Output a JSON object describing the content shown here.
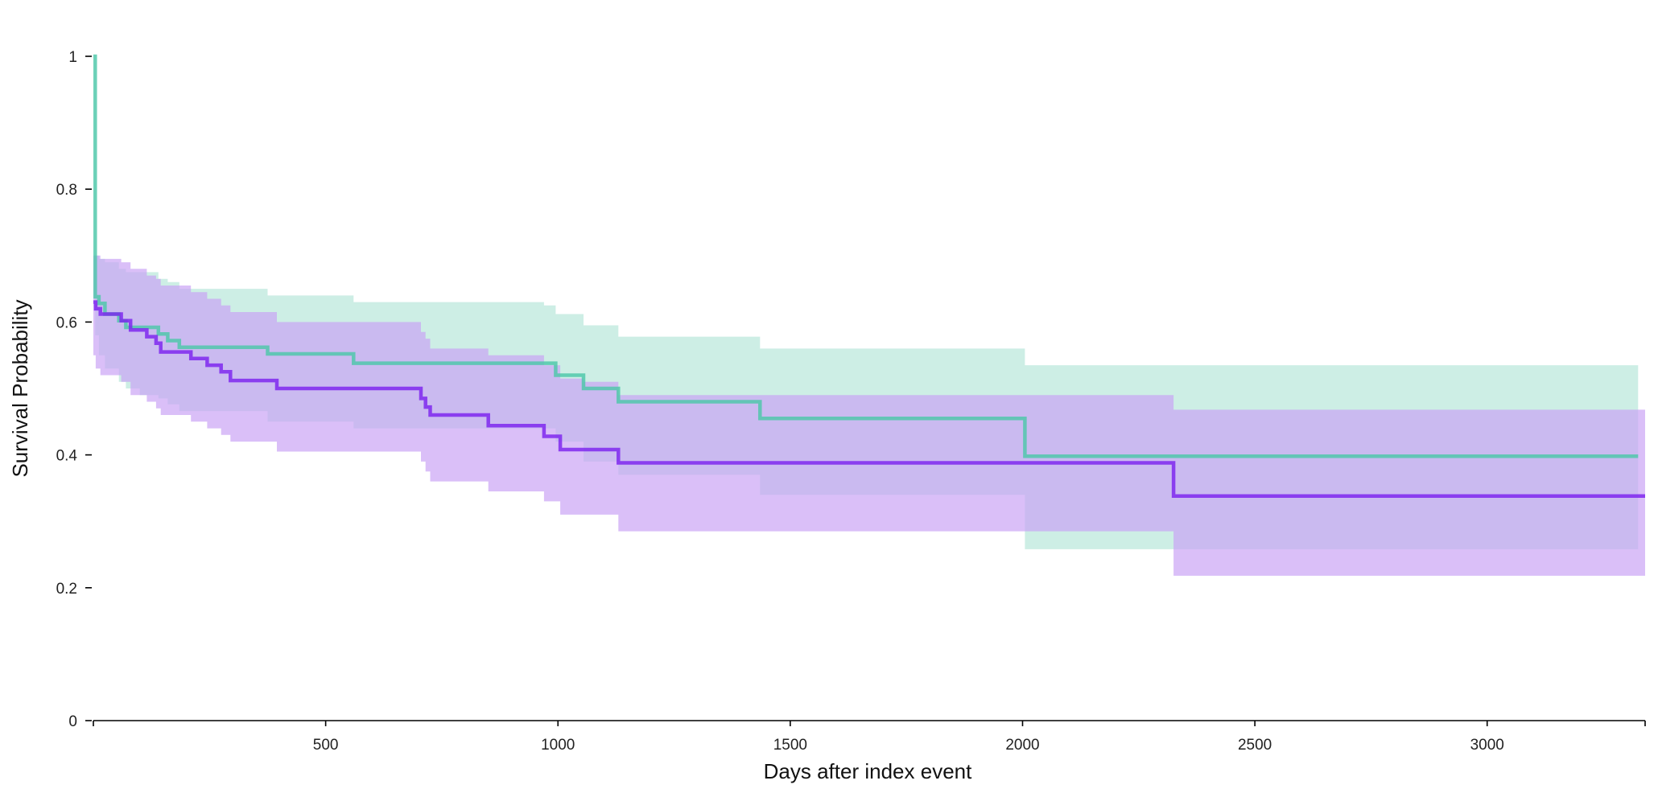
{
  "chart_data": {
    "type": "line",
    "subtype": "kaplan-meier step",
    "title": "",
    "xlabel": "Days after index event",
    "ylabel": "Survival Probability",
    "xlim": [
      0,
      3340
    ],
    "ylim": [
      0,
      1
    ],
    "xticks": [
      500,
      1000,
      1500,
      2000,
      2500,
      3000
    ],
    "yticks": [
      0,
      0.2,
      0.4,
      0.6,
      0.8,
      1
    ],
    "ytick_labels": [
      "0",
      "0.2",
      "0.4",
      "0.6",
      "0.8",
      "1"
    ],
    "grid": false,
    "legend": "none",
    "series": [
      {
        "color": "#4cc7a8",
        "band_color": "#b6e6d8",
        "x": [
          0,
          4,
          12,
          25,
          55,
          70,
          100,
          140,
          160,
          185,
          375,
          560,
          970,
          995,
          1055,
          1130,
          1435,
          2005,
          3325
        ],
        "y": [
          1.0,
          0.638,
          0.628,
          0.612,
          0.602,
          0.592,
          0.592,
          0.582,
          0.572,
          0.562,
          0.552,
          0.538,
          0.538,
          0.52,
          0.5,
          0.48,
          0.455,
          0.398,
          0.398
        ],
        "lower": [
          1.0,
          0.58,
          0.55,
          0.53,
          0.51,
          0.5,
          0.49,
          0.485,
          0.476,
          0.466,
          0.45,
          0.44,
          0.44,
          0.42,
          0.39,
          0.37,
          0.34,
          0.258,
          0.258
        ],
        "upper": [
          1.0,
          0.7,
          0.695,
          0.69,
          0.68,
          0.675,
          0.675,
          0.665,
          0.66,
          0.65,
          0.64,
          0.63,
          0.625,
          0.612,
          0.595,
          0.578,
          0.56,
          0.535,
          0.535
        ]
      },
      {
        "color": "#7b22ee",
        "band_color": "#c9a0f5",
        "x": [
          0,
          5,
          15,
          60,
          80,
          115,
          135,
          145,
          210,
          245,
          275,
          295,
          395,
          705,
          715,
          725,
          850,
          970,
          1005,
          1055,
          1130,
          2325,
          3340
        ],
        "y": [
          0.63,
          0.62,
          0.612,
          0.602,
          0.588,
          0.578,
          0.568,
          0.555,
          0.545,
          0.535,
          0.525,
          0.512,
          0.5,
          0.485,
          0.472,
          0.46,
          0.444,
          0.428,
          0.408,
          0.408,
          0.388,
          0.338,
          0.338
        ],
        "lower": [
          0.55,
          0.53,
          0.52,
          0.51,
          0.49,
          0.48,
          0.47,
          0.46,
          0.45,
          0.44,
          0.43,
          0.42,
          0.405,
          0.39,
          0.375,
          0.36,
          0.345,
          0.33,
          0.31,
          0.31,
          0.285,
          0.218,
          0.218
        ],
        "upper": [
          0.7,
          0.7,
          0.695,
          0.69,
          0.68,
          0.67,
          0.665,
          0.655,
          0.645,
          0.635,
          0.625,
          0.615,
          0.6,
          0.585,
          0.575,
          0.56,
          0.55,
          0.535,
          0.515,
          0.51,
          0.49,
          0.468,
          0.468
        ]
      }
    ]
  }
}
